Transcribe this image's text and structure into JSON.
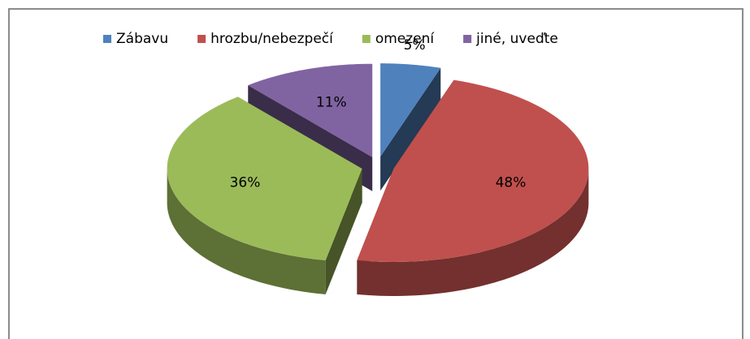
{
  "chart_data": {
    "type": "pie",
    "categories": [
      "Zábavu",
      "hrozbu/nebezpečí",
      "omezení",
      "jiné, uveďte"
    ],
    "values": [
      5,
      48,
      36,
      11
    ],
    "value_labels": [
      "5%",
      "48%",
      "36%",
      "11%"
    ],
    "colors": [
      "#4f81bd",
      "#c0504d",
      "#9bbb59",
      "#8064a2"
    ],
    "legend": "top"
  }
}
